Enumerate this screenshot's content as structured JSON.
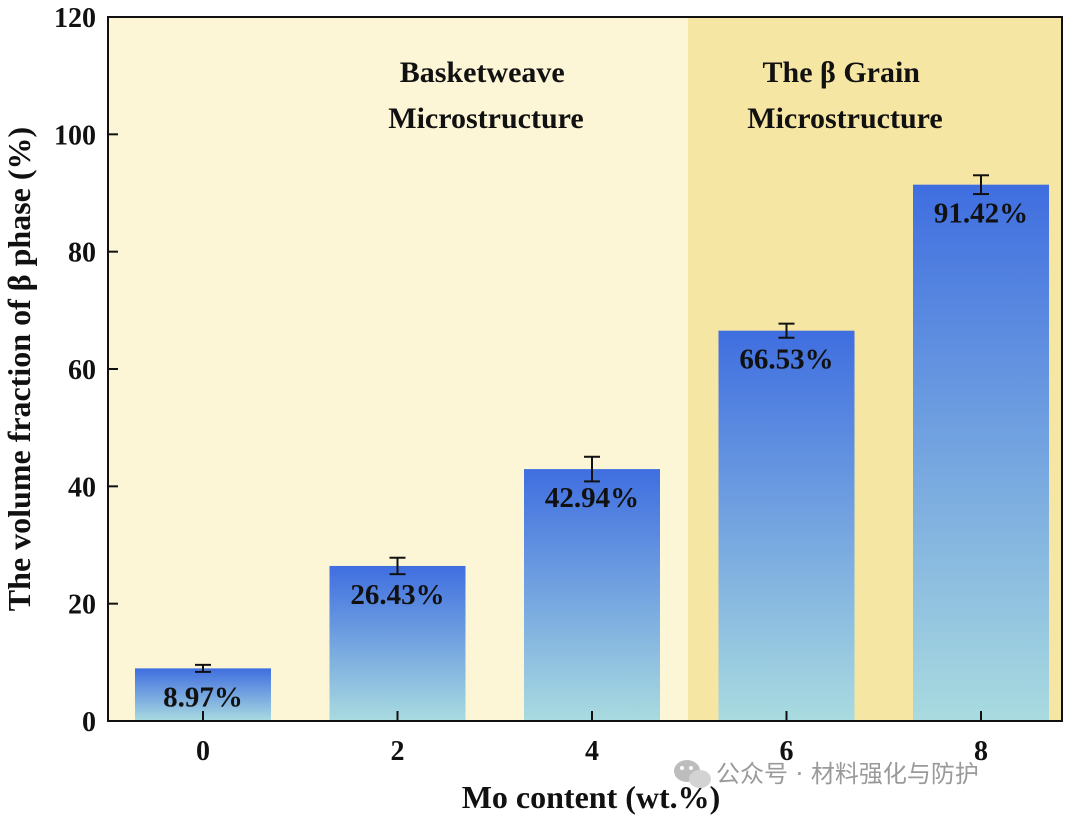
{
  "chart_data": {
    "type": "bar",
    "categories": [
      "0",
      "2",
      "4",
      "6",
      "8"
    ],
    "values": [
      8.97,
      26.43,
      42.94,
      66.53,
      91.42
    ],
    "error": [
      0.6,
      1.4,
      2.1,
      1.2,
      1.6
    ],
    "data_labels": [
      "8.97%",
      "26.43%",
      "42.94%",
      "66.53%",
      "91.42%"
    ],
    "xlabel": "Mo content (wt.%)",
    "ylabel": "The volume fraction of β phase (%)",
    "ylim": [
      0,
      120
    ],
    "yticks": [
      0,
      20,
      40,
      60,
      80,
      100,
      120
    ],
    "grid": false,
    "regions": [
      {
        "lines": [
          "Basketweave",
          "Microstructure"
        ],
        "color": "#fcf5d6"
      },
      {
        "lines": [
          "The β Grain",
          "Microstructure"
        ],
        "color": "#f6e6a4"
      }
    ],
    "bar_color_top": "#3f6ee0",
    "bar_color_bottom": "#a9dbe0"
  },
  "watermark": {
    "icon": "wechat-icon",
    "text": "公众号 · 材料强化与防护"
  }
}
